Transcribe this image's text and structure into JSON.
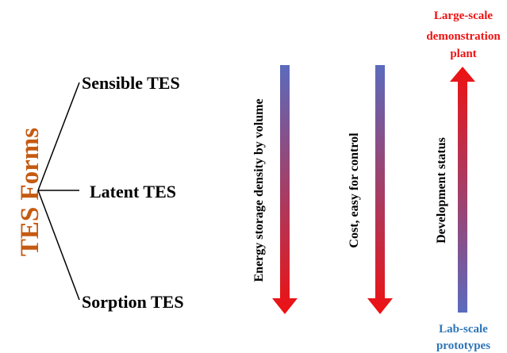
{
  "title": "TES Forms",
  "forms": [
    "Sensible TES",
    "Latent TES",
    "Sorption TES"
  ],
  "arrows": [
    {
      "label": "Energy storage density by volume",
      "direction": "down"
    },
    {
      "label": "Cost, easy for control",
      "direction": "down"
    },
    {
      "label": "Development status",
      "direction": "up"
    }
  ],
  "status_top": [
    "Large-scale",
    "demonstration",
    "plant"
  ],
  "status_bottom": [
    "Lab-scale",
    "prototypes"
  ],
  "colors": {
    "title": "#c55a11",
    "arrow_blue": "#5b6bbd",
    "arrow_red": "#ee1111",
    "top_label": "#ee1111",
    "bottom_label": "#2e75b6",
    "text": "#000000"
  }
}
